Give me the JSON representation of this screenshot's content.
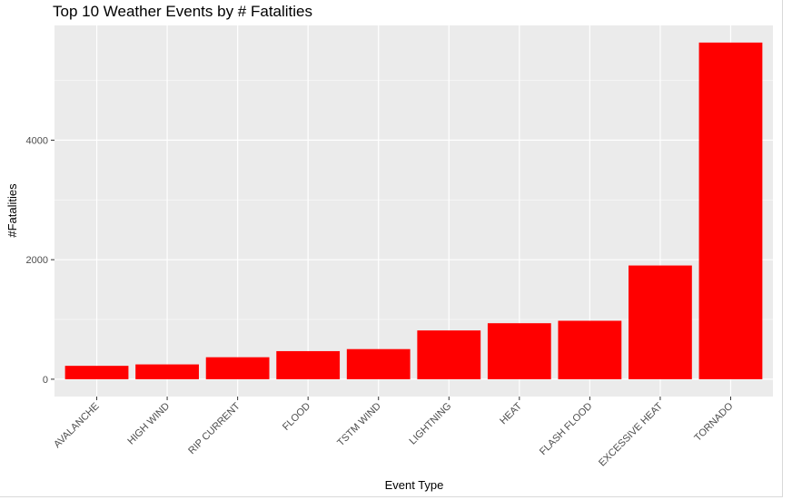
{
  "chart_data": {
    "type": "bar",
    "title": "Top 10 Weather Events by # Fatalities",
    "xlabel": "Event Type",
    "ylabel": "#Fatalities",
    "categories": [
      "AVALANCHE",
      "HIGH WIND",
      "RIP CURRENT",
      "FLOOD",
      "TSTM WIND",
      "LIGHTNING",
      "HEAT",
      "FLASH FLOOD",
      "EXCESSIVE HEAT",
      "TORNADO"
    ],
    "values": [
      224,
      248,
      368,
      470,
      504,
      816,
      937,
      978,
      1903,
      5633
    ],
    "yticks": [
      0,
      2000,
      4000
    ],
    "ylim": [
      -290,
      5920
    ],
    "grid": true,
    "legend": "none",
    "colors": {
      "bar": "#ff0000",
      "panel": "#ebebeb",
      "grid_major": "#ffffff",
      "grid_minor": "#f5f5f5",
      "tick_text": "#4d4d4d",
      "tick_mark": "#333333"
    }
  }
}
